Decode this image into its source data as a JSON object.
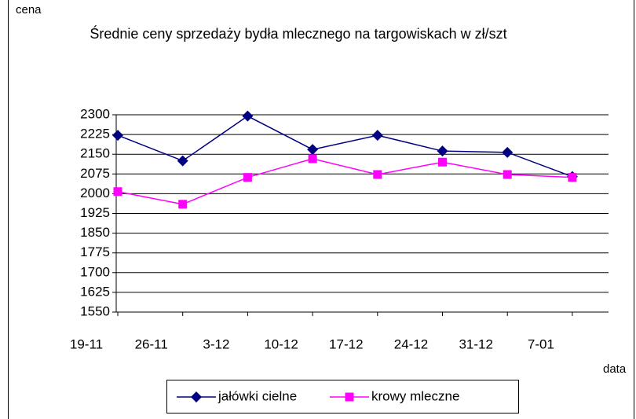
{
  "chart_data": {
    "type": "line",
    "title": "Średnie ceny sprzedaży bydła mlecznego na targowiskach w zł/szt",
    "y_label": "cena",
    "x_label": "data",
    "categories": [
      "19-11",
      "26-11",
      "3-12",
      "10-12",
      "17-12",
      "24-12",
      "31-12",
      "7-01"
    ],
    "series": [
      {
        "name": "jałówki cielne",
        "color": "#000080",
        "marker": "diamond",
        "values": [
          2222,
          2125,
          2295,
          2168,
          2222,
          2162,
          2157,
          2065
        ]
      },
      {
        "name": "krowy mleczne",
        "color": "#ff00ff",
        "marker": "square",
        "values": [
          2008,
          1960,
          2062,
          2133,
          2073,
          2120,
          2073,
          2062
        ]
      }
    ],
    "ylim": [
      1550,
      2300
    ],
    "yticks": [
      1550,
      1625,
      1700,
      1775,
      1850,
      1925,
      2000,
      2075,
      2150,
      2225,
      2300
    ],
    "grid": true,
    "legend": "bottom"
  }
}
